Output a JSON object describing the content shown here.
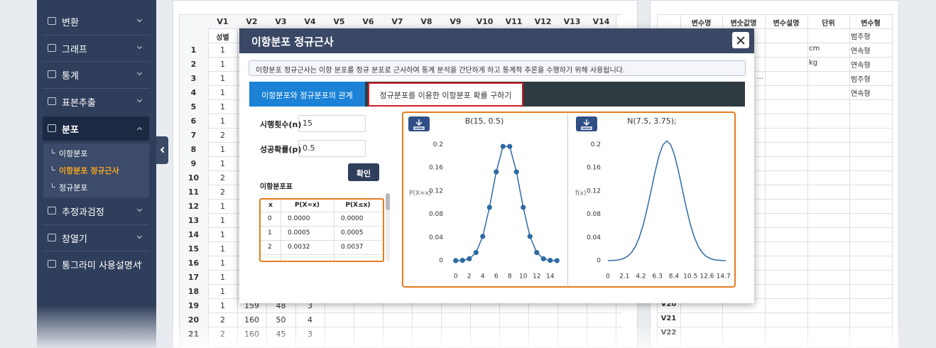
{
  "sidebar": {
    "menu": [
      {
        "label": "변환"
      },
      {
        "label": "그래프"
      },
      {
        "label": "통계"
      },
      {
        "label": "표본추출"
      },
      {
        "label": "분포",
        "submenu": [
          "이항분포",
          "이항분포 정규근사",
          "정규분포"
        ]
      },
      {
        "label": "추정과검정"
      },
      {
        "label": "창열기"
      },
      {
        "label": "통그라미 사용설명서"
      }
    ]
  },
  "sheet": {
    "columns": [
      "V1",
      "V2",
      "V3",
      "V4",
      "V5",
      "V6",
      "V7",
      "V8",
      "V9",
      "V10",
      "V11",
      "V12",
      "V13",
      "V14"
    ],
    "labels": [
      "성별"
    ],
    "rows": [
      [
        "1",
        "1"
      ],
      [
        "2",
        "1"
      ],
      [
        "3",
        "1"
      ],
      [
        "4",
        "1"
      ],
      [
        "5",
        "1"
      ],
      [
        "6",
        "1"
      ],
      [
        "7",
        "2"
      ],
      [
        "8",
        "1"
      ],
      [
        "9",
        "1"
      ],
      [
        "10",
        "2"
      ],
      [
        "11",
        "2"
      ],
      [
        "12",
        "1"
      ],
      [
        "13",
        "1"
      ],
      [
        "14",
        "1"
      ],
      [
        "15",
        "1"
      ],
      [
        "16",
        "1"
      ],
      [
        "17",
        "1"
      ],
      [
        "18",
        "1"
      ],
      [
        "19",
        "1",
        "159",
        "48",
        "3"
      ],
      [
        "20",
        "2",
        "160",
        "50",
        "4"
      ],
      [
        "21",
        "2",
        "160",
        "45",
        "3"
      ]
    ]
  },
  "vars": {
    "columns": [
      "변수명",
      "변숫값명",
      "변수설명",
      "단위",
      "변수형"
    ],
    "rows": [
      {
        "type": "범주형"
      },
      {
        "unit": "cm",
        "type": "연속형"
      },
      {
        "unit": "kg",
        "type": "연속형"
      },
      {
        "value": "...",
        "type": "범주형"
      },
      {
        "type": "연속형"
      },
      {},
      {},
      {},
      {},
      {},
      {},
      {},
      {},
      {},
      {},
      {},
      {},
      {},
      {},
      {
        "name": "V20"
      },
      {
        "name": "V21"
      },
      {
        "name": "V22"
      }
    ]
  },
  "modal": {
    "title": "이항분포 정규근사",
    "info": "이항분포 정규근사는 이항 분포를 정규 분포로 근사하여 통계 분석을 간단하게 하고 통계적 추론을 수행하기 위해 사용됩니다.",
    "tabs": [
      "이항분포와 정규분포의 관계",
      "정규분포를 이용한 이항분포 확률 구하기"
    ],
    "inputs": [
      {
        "label": "시행횟수(n)",
        "value": "15"
      },
      {
        "label": "성공확률(p)",
        "value": "0.5"
      }
    ],
    "button": "확인",
    "table_title": "이항분포표",
    "table": {
      "columns": [
        "x",
        "P(X=x)",
        "P(X≤x)"
      ],
      "rows": [
        [
          "0",
          "0.0000",
          "0.0000"
        ],
        [
          "1",
          "0.0005",
          "0.0005"
        ],
        [
          "2",
          "0.0032",
          "0.0037"
        ]
      ]
    }
  },
  "chart_data": [
    {
      "type": "line",
      "markers": true,
      "title": "B(15, 0.5)",
      "y_label": "P(X=x)",
      "color": "#2d6aa3",
      "x": [
        0,
        1,
        2,
        3,
        4,
        5,
        6,
        7,
        8,
        9,
        10,
        11,
        12,
        13,
        14,
        15
      ],
      "values": [
        3e-05,
        0.00046,
        0.0032,
        0.0139,
        0.0417,
        0.0916,
        0.1527,
        0.1964,
        0.1964,
        0.1527,
        0.0916,
        0.0417,
        0.0139,
        0.0032,
        0.00046,
        3e-05
      ],
      "xlim": [
        -0.5,
        15.5
      ],
      "xticks": [
        0,
        2,
        4,
        6,
        8,
        10,
        12,
        14
      ],
      "ylim": [
        0,
        0.215
      ],
      "yticks": [
        0,
        0.04,
        0.08,
        0.12,
        0.16,
        0.2
      ]
    },
    {
      "type": "line",
      "markers": false,
      "title": "N(7.5, 3.75);",
      "y_label": "f(x)",
      "color": "#2d6aa3",
      "x": [
        0,
        0.5,
        1,
        1.5,
        2,
        2.5,
        3,
        3.5,
        4,
        4.5,
        5,
        5.5,
        6,
        6.5,
        7,
        7.5,
        8,
        8.5,
        9,
        9.5,
        10,
        10.5,
        11,
        11.5,
        12,
        12.5,
        13,
        13.5,
        14,
        14.5,
        15
      ],
      "values": [
        0.0001,
        0.0003,
        0.0007,
        0.0017,
        0.0037,
        0.0074,
        0.0139,
        0.0244,
        0.0402,
        0.062,
        0.0895,
        0.1208,
        0.1526,
        0.1803,
        0.1993,
        0.206,
        0.1993,
        0.1803,
        0.1526,
        0.1208,
        0.0895,
        0.062,
        0.0402,
        0.0244,
        0.0139,
        0.0074,
        0.0037,
        0.0017,
        0.0007,
        0.0003,
        0.0001
      ],
      "xlim": [
        0,
        15
      ],
      "xticks": [
        0,
        2.1,
        4.2,
        6.3,
        8.4,
        10.5,
        12.6,
        14.7
      ],
      "ylim": [
        0,
        0.215
      ],
      "yticks": [
        0,
        0.04,
        0.08,
        0.12,
        0.16,
        0.2
      ]
    }
  ]
}
